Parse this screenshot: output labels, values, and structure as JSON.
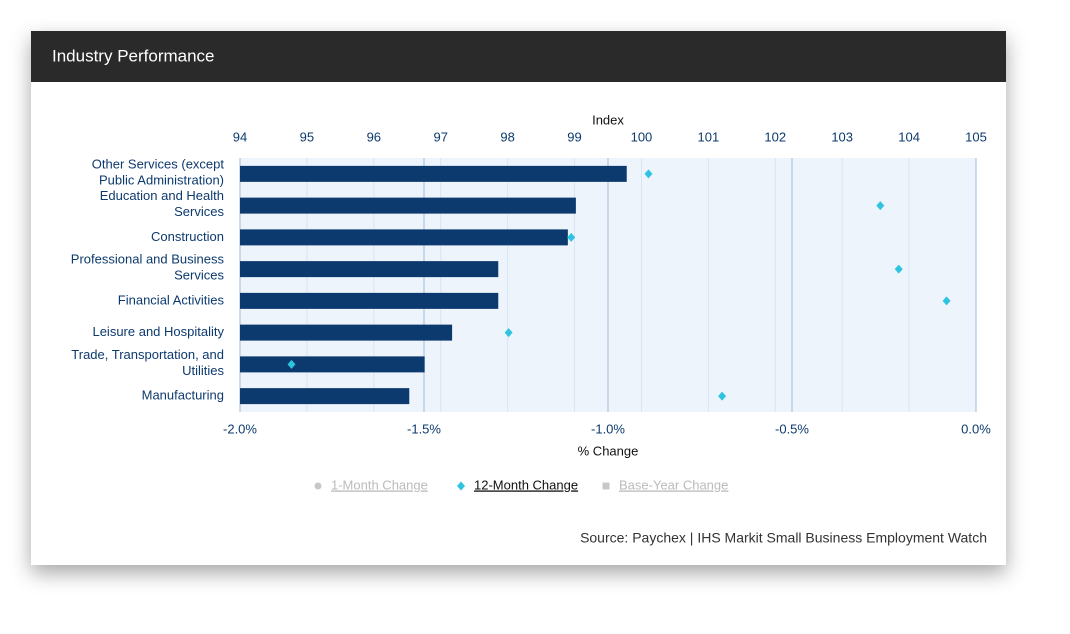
{
  "header": {
    "title": "Industry Performance"
  },
  "chart_data": {
    "type": "bar",
    "x2_label": "Index",
    "xlabel": "% Change",
    "categories": [
      [
        "Other Services (except",
        "Public Administration)"
      ],
      [
        "Education and Health",
        "Services"
      ],
      [
        "Construction"
      ],
      [
        "Professional and Business",
        "Services"
      ],
      [
        "Financial Activities"
      ],
      [
        "Leisure and Hospitality"
      ],
      [
        "Trade, Transportation, and",
        "Utilities"
      ],
      [
        "Manufacturing"
      ]
    ],
    "series": [
      {
        "type": "bar",
        "axis": "x2",
        "color": "#0d3a6e",
        "values": [
          99.78,
          99.02,
          98.9,
          97.86,
          97.86,
          97.17,
          96.76,
          96.53
        ]
      },
      {
        "type": "scatter",
        "marker": "diamond",
        "color": "#2ec4e0",
        "values": [
          -0.89,
          -0.26,
          -1.1,
          -0.21,
          -0.08,
          -1.27,
          -1.86,
          -0.69
        ]
      }
    ],
    "xlim": [
      -2,
      0
    ],
    "xticks": [
      {
        "value": -2,
        "label": "-2.0%"
      },
      {
        "value": -1.5,
        "label": "-1.5%"
      },
      {
        "value": -1,
        "label": "-1.0%"
      },
      {
        "value": -0.5,
        "label": "-0.5%"
      },
      {
        "value": 0,
        "label": "0.0%"
      }
    ],
    "x2lim": [
      94,
      105
    ],
    "x2ticks": [
      94,
      95,
      96,
      97,
      98,
      99,
      100,
      101,
      102,
      103,
      104,
      105
    ],
    "grid": true,
    "legend": [
      {
        "label": "1-Month Change",
        "marker": "circle",
        "active": false
      },
      {
        "label": "12-Month Change",
        "marker": "diamond",
        "active": true
      },
      {
        "label": "Base-Year Change",
        "marker": "square",
        "active": false
      }
    ],
    "source": "Source: Paychex | IHS Markit Small Business Employment Watch"
  }
}
